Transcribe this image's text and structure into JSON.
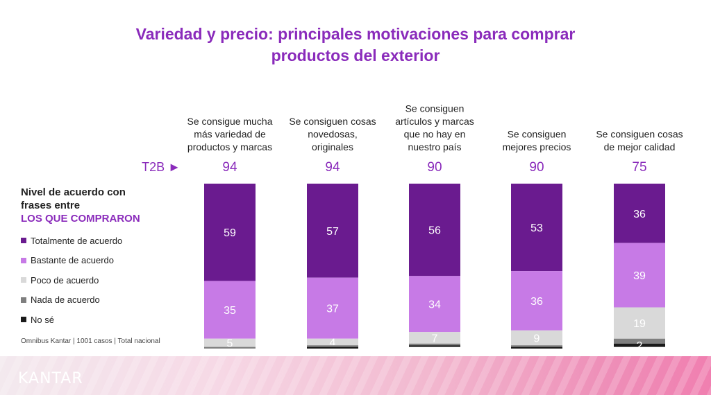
{
  "title_line1": "Variedad y precio: principales motivaciones para comprar",
  "title_line2": "productos del exterior",
  "t2b_label": "T2B ►",
  "legend": {
    "heading1": "Nivel de acuerdo con",
    "heading2": "frases entre",
    "subheading": "LOS QUE COMPRARON",
    "items": [
      {
        "label": "Totalmente de acuerdo",
        "color": "#6a1b8f"
      },
      {
        "label": "Bastante de acuerdo",
        "color": "#c77ae6"
      },
      {
        "label": "Poco de acuerdo",
        "color": "#d9d9d9"
      },
      {
        "label": "Nada de acuerdo",
        "color": "#7f7f7f"
      },
      {
        "label": "No sé",
        "color": "#1a1a1a"
      }
    ]
  },
  "source": "Omnibus Kantar | 1001 casos | Total nacional",
  "logo": "KANTAR",
  "chart_data": {
    "type": "bar",
    "stacked": true,
    "categories": [
      [
        "Se consigue mucha",
        "más variedad de",
        "productos y marcas"
      ],
      [
        "Se consiguen cosas",
        "novedosas,",
        "originales"
      ],
      [
        "Se consiguen",
        "artículos y marcas",
        "que no hay en",
        "nuestro país"
      ],
      [
        "Se consiguen",
        "mejores precios"
      ],
      [
        "Se consiguen cosas",
        "de mejor calidad"
      ]
    ],
    "t2b": [
      94,
      94,
      90,
      90,
      75
    ],
    "series": [
      {
        "name": "Totalmente de acuerdo",
        "color": "#6a1b8f",
        "text_color": "#ffffff",
        "values": [
          59,
          57,
          56,
          53,
          36
        ]
      },
      {
        "name": "Bastante de acuerdo",
        "color": "#c77ae6",
        "text_color": "#ffffff",
        "values": [
          35,
          37,
          34,
          36,
          39
        ]
      },
      {
        "name": "Poco de acuerdo",
        "color": "#d9d9d9",
        "text_color": "#ffffff",
        "values": [
          5,
          4,
          7,
          9,
          19
        ]
      },
      {
        "name": "Nada de acuerdo",
        "color": "#7f7f7f",
        "text_color": "#ffffff",
        "values": [
          1,
          1,
          1,
          1,
          3
        ]
      },
      {
        "name": "No sé",
        "color": "#1a1a1a",
        "text_color": "#ffffff",
        "values": [
          0,
          1,
          1,
          1,
          2
        ]
      }
    ],
    "visible_labels": [
      [
        "59",
        "35",
        "5",
        "",
        ""
      ],
      [
        "57",
        "37",
        "4",
        "",
        ""
      ],
      [
        "56",
        "34",
        "7",
        "",
        ""
      ],
      [
        "53",
        "36",
        "9",
        "",
        ""
      ],
      [
        "36",
        "39",
        "19",
        "",
        "2"
      ]
    ],
    "ylim": [
      0,
      100
    ],
    "legend_position": "left"
  }
}
